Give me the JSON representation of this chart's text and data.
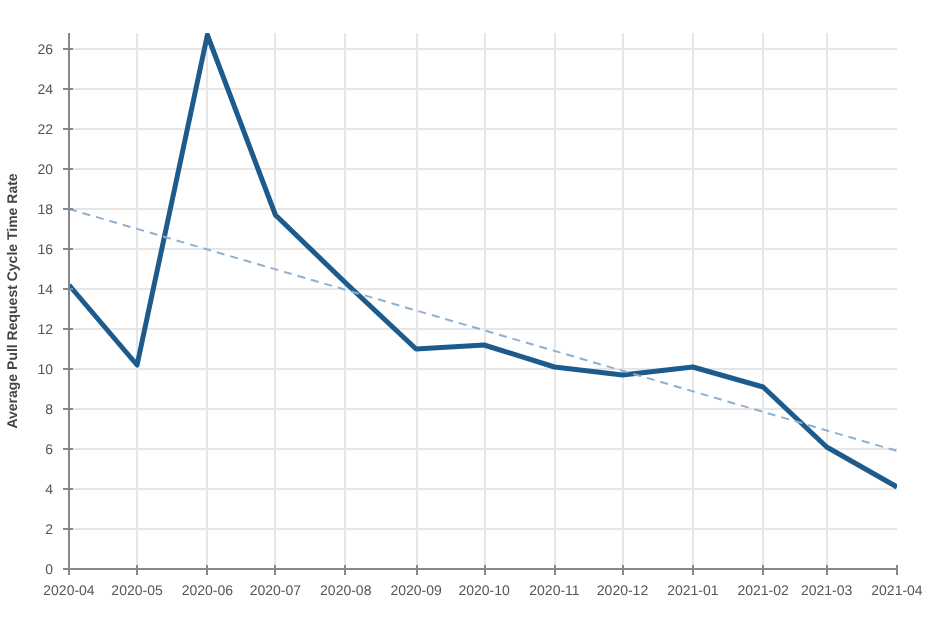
{
  "chart_data": {
    "type": "line",
    "ylabel": "Average Pull Request Cycle Time Rate",
    "x": [
      "2020-04",
      "2020-05",
      "2020-06",
      "2020-07",
      "2020-08",
      "2020-09",
      "2020-10",
      "2020-11",
      "2020-12",
      "2021-01",
      "2021-02",
      "2021-03",
      "2021-04"
    ],
    "series": [
      {
        "color": "#1d5b8c",
        "values": [
          14.2,
          10.2,
          26.7,
          17.7,
          14.3,
          11.0,
          11.2,
          10.1,
          9.7,
          10.1,
          9.1,
          6.1,
          4.1
        ]
      },
      {
        "type": "line",
        "color": "#8fb0cf",
        "line_style": "dashed",
        "x": [
          "2020-04",
          "2021-04"
        ],
        "values": [
          18.0,
          5.9
        ]
      }
    ],
    "xlim": [
      "2020-04",
      "2021-04"
    ],
    "xticks": [
      "2020-04",
      "2020-05",
      "2020-06",
      "2020-07",
      "2020-08",
      "2020-09",
      "2020-10",
      "2020-11",
      "2020-12",
      "2021-01",
      "2021-02",
      "2021-03",
      "2021-04"
    ],
    "ylim": [
      0,
      26.8
    ],
    "yticks": [
      0,
      2,
      4,
      6,
      8,
      10,
      12,
      14,
      16,
      18,
      20,
      22,
      24,
      26
    ],
    "grid": true,
    "line_style": "solid",
    "marker": "none"
  }
}
